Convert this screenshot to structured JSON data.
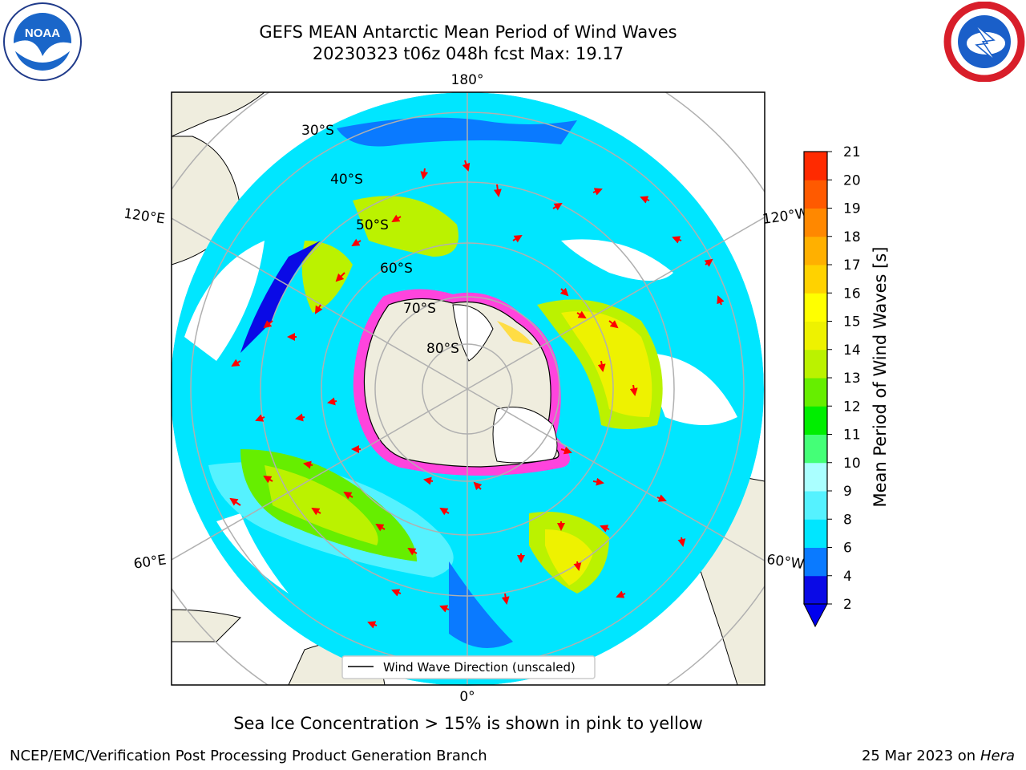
{
  "header": {
    "title_line1": "GEFS MEAN Antarctic Mean Period of Wind Waves",
    "title_line2": "20230323 t06z 048h fcst   Max: 19.17"
  },
  "logos": {
    "left_name": "noaa-logo",
    "left_text": "NOAA",
    "right_name": "nws-logo"
  },
  "map": {
    "longitude_labels": {
      "top": "180°",
      "bottom": "0°",
      "left_upper": "120°E",
      "left_lower": "60°E",
      "right_upper": "120°W",
      "right_lower": "60°W"
    },
    "latitude_labels": [
      "30°S",
      "40°S",
      "50°S",
      "60°S",
      "70°S",
      "80°S"
    ],
    "legend_label": "Wind Wave Direction (unscaled)",
    "colors": {
      "land": "#efedde",
      "ocean_no_data": "#ffffff",
      "ice_edge": "#ff44dd",
      "arrow": "#ff0000",
      "grid": "#b0b0b0"
    }
  },
  "colorbar": {
    "title": "Mean Period of Wind Waves [s]",
    "ticks": [
      "2",
      "4",
      "6",
      "8",
      "9",
      "10",
      "11",
      "12",
      "13",
      "14",
      "15",
      "16",
      "17",
      "18",
      "19",
      "20",
      "21"
    ],
    "colors": [
      "#0a0ae6",
      "#0a7aff",
      "#00e6ff",
      "#55f2ff",
      "#aaffff",
      "#44ff77",
      "#00ee00",
      "#66ee00",
      "#bbf200",
      "#eef200",
      "#ffff00",
      "#ffd200",
      "#ffb000",
      "#ff8800",
      "#ff5a00",
      "#ff2a00"
    ],
    "extend_color": "#0000ee"
  },
  "footer": {
    "subtitle": "Sea Ice Concentration > 15% is shown in pink to yellow",
    "credit_left": "NCEP/EMC/Verification Post Processing Product Generation Branch",
    "credit_right_date": "25 Mar 2023 on",
    "credit_right_host": "Hera"
  }
}
